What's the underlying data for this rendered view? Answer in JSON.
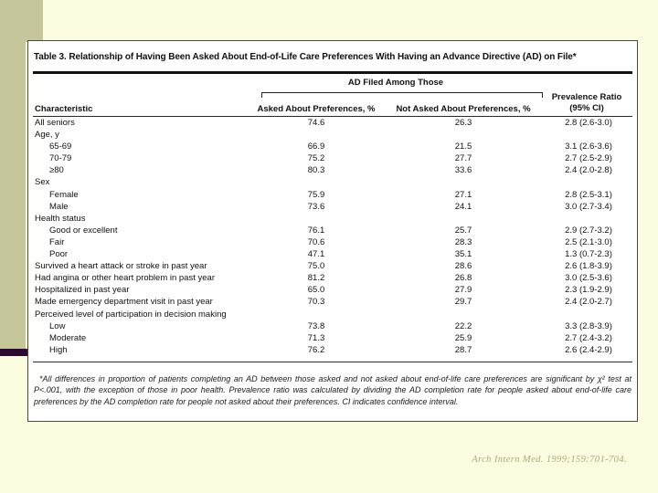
{
  "slide": {
    "citation": "Arch Intern Med. 1999;159:701-704.",
    "colors": {
      "background": "#FCFCE0",
      "accent_band": "#C6C69C",
      "accent_bar": "#2E0A30",
      "card_background": "#FFFFFF"
    }
  },
  "table": {
    "title": "Table 3. Relationship of Having Been Asked About End-of-Life Care Preferences With Having an Advance Directive (AD) on File*",
    "span_header": "AD Filed Among Those",
    "columns": {
      "characteristic": "Characteristic",
      "asked": "Asked About Preferences, %",
      "not_asked": "Not Asked About Preferences, %",
      "prevalence_line1": "Prevalence Ratio",
      "prevalence_line2": "(95% CI)"
    },
    "rows": [
      {
        "label": "All seniors",
        "indent": false,
        "asked": "74.6",
        "not_asked": "26.3",
        "pr": "2.8 (2.6-3.0)"
      },
      {
        "label": "Age, y",
        "indent": false,
        "asked": "",
        "not_asked": "",
        "pr": ""
      },
      {
        "label": "65-69",
        "indent": true,
        "asked": "66.9",
        "not_asked": "21.5",
        "pr": "3.1 (2.6-3.6)"
      },
      {
        "label": "70-79",
        "indent": true,
        "asked": "75.2",
        "not_asked": "27.7",
        "pr": "2.7 (2.5-2.9)"
      },
      {
        "label": "≥80",
        "indent": true,
        "asked": "80.3",
        "not_asked": "33.6",
        "pr": "2.4 (2.0-2.8)"
      },
      {
        "label": "Sex",
        "indent": false,
        "asked": "",
        "not_asked": "",
        "pr": ""
      },
      {
        "label": "Female",
        "indent": true,
        "asked": "75.9",
        "not_asked": "27.1",
        "pr": "2.8 (2.5-3.1)"
      },
      {
        "label": "Male",
        "indent": true,
        "asked": "73.6",
        "not_asked": "24.1",
        "pr": "3.0 (2.7-3.4)"
      },
      {
        "label": "Health status",
        "indent": false,
        "asked": "",
        "not_asked": "",
        "pr": ""
      },
      {
        "label": "Good or excellent",
        "indent": true,
        "asked": "76.1",
        "not_asked": "25.7",
        "pr": "2.9 (2.7-3.2)"
      },
      {
        "label": "Fair",
        "indent": true,
        "asked": "70.6",
        "not_asked": "28.3",
        "pr": "2.5 (2.1-3.0)"
      },
      {
        "label": "Poor",
        "indent": true,
        "asked": "47.1",
        "not_asked": "35.1",
        "pr": "1.3 (0.7-2.3)"
      },
      {
        "label": "Survived a heart attack or stroke in past year",
        "indent": false,
        "asked": "75.0",
        "not_asked": "28.6",
        "pr": "2.6 (1.8-3.9)"
      },
      {
        "label": "Had angina or other heart problem in past year",
        "indent": false,
        "asked": "81.2",
        "not_asked": "26.8",
        "pr": "3.0 (2.5-3.6)"
      },
      {
        "label": "Hospitalized in past year",
        "indent": false,
        "asked": "65.0",
        "not_asked": "27.9",
        "pr": "2.3 (1.9-2.9)"
      },
      {
        "label": "Made emergency department visit in past year",
        "indent": false,
        "asked": "70.3",
        "not_asked": "29.7",
        "pr": "2.4 (2.0-2.7)"
      },
      {
        "label": "Perceived level of participation in decision making",
        "indent": false,
        "asked": "",
        "not_asked": "",
        "pr": ""
      },
      {
        "label": "Low",
        "indent": true,
        "asked": "73.8",
        "not_asked": "22.2",
        "pr": "3.3 (2.8-3.9)"
      },
      {
        "label": "Moderate",
        "indent": true,
        "asked": "71.3",
        "not_asked": "25.9",
        "pr": "2.7 (2.4-3.2)"
      },
      {
        "label": "High",
        "indent": true,
        "asked": "76.2",
        "not_asked": "28.7",
        "pr": "2.6 (2.4-2.9)"
      }
    ],
    "footnote": "*All differences in proportion of patients completing an AD between those asked and not asked about end-of-life care preferences are significant by χ² test at P<.001, with the exception of those in poor health. Prevalence ratio was calculated by dividing the AD completion rate for people asked about end-of-life care preferences by the AD completion rate for people not asked about their preferences. CI indicates confidence interval."
  }
}
